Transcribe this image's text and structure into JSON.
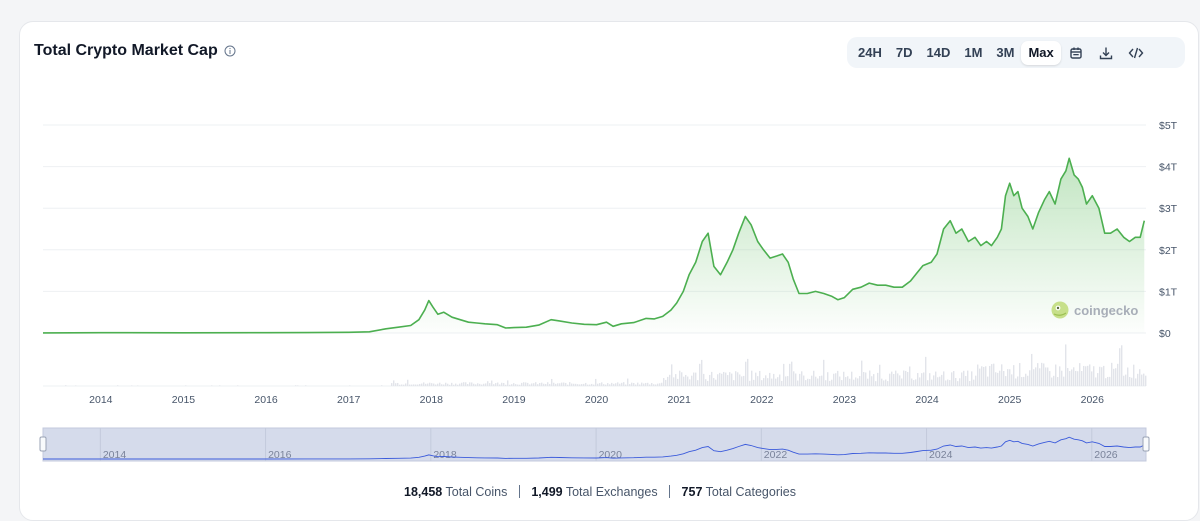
{
  "header": {
    "title": "Total Crypto Market Cap",
    "ranges": [
      "24H",
      "7D",
      "14D",
      "1M",
      "3M",
      "Max"
    ],
    "active_range": "Max",
    "icons": [
      "calendar-icon",
      "download-icon",
      "embed-code-icon"
    ]
  },
  "watermark": "coingecko",
  "colors": {
    "line": "#4caf50",
    "area_top": "#8fd08f",
    "volume": "#e2e4ea",
    "navigator_fill": "#d5dbeb",
    "navigator_line": "#3b5bdb"
  },
  "footer": {
    "coins_value": "18,458",
    "coins_label": "Total Coins",
    "exchanges_value": "1,499",
    "exchanges_label": "Total Exchanges",
    "categories_value": "757",
    "categories_label": "Total Categories"
  },
  "chart_data": {
    "type": "area",
    "title": "Total Crypto Market Cap",
    "xlabel": "",
    "ylabel": "",
    "x_unit": "year",
    "y_unit": "trillion USD",
    "xlim": [
      2013.3,
      2026.65
    ],
    "ylim": [
      0,
      5
    ],
    "y_ticks": [
      0,
      1,
      2,
      3,
      4,
      5
    ],
    "y_tick_labels": [
      "$0",
      "$1T",
      "$2T",
      "$3T",
      "$4T",
      "$5T"
    ],
    "x_ticks": [
      2014,
      2015,
      2016,
      2017,
      2018,
      2019,
      2020,
      2021,
      2022,
      2023,
      2024,
      2025,
      2026
    ],
    "x_tick_labels": [
      "2014",
      "2015",
      "2016",
      "2017",
      "2018",
      "2019",
      "2020",
      "2021",
      "2022",
      "2023",
      "2024",
      "2025",
      "2026"
    ],
    "navigator_tick_labels": [
      "2014",
      "2016",
      "2018",
      "2020",
      "2022",
      "2024",
      "2026"
    ],
    "grid": true,
    "series": [
      {
        "x": [
          2013.3,
          2014.0,
          2015.0,
          2016.0,
          2016.5,
          2017.0,
          2017.25,
          2017.45,
          2017.6,
          2017.75,
          2017.85,
          2017.92,
          2017.97,
          2018.02,
          2018.08,
          2018.15,
          2018.25,
          2018.35,
          2018.45,
          2018.55,
          2018.65,
          2018.8,
          2018.9,
          2019.0,
          2019.15,
          2019.3,
          2019.45,
          2019.55,
          2019.7,
          2019.85,
          2020.0,
          2020.12,
          2020.2,
          2020.3,
          2020.45,
          2020.6,
          2020.7,
          2020.8,
          2020.9,
          2020.97,
          2021.05,
          2021.12,
          2021.2,
          2021.28,
          2021.35,
          2021.42,
          2021.5,
          2021.58,
          2021.65,
          2021.72,
          2021.8,
          2021.87,
          2021.95,
          2022.02,
          2022.1,
          2022.18,
          2022.25,
          2022.32,
          2022.38,
          2022.45,
          2022.55,
          2022.65,
          2022.75,
          2022.85,
          2022.92,
          2023.0,
          2023.1,
          2023.2,
          2023.3,
          2023.4,
          2023.5,
          2023.6,
          2023.7,
          2023.8,
          2023.88,
          2023.95,
          2024.05,
          2024.12,
          2024.2,
          2024.28,
          2024.35,
          2024.42,
          2024.5,
          2024.58,
          2024.65,
          2024.72,
          2024.78,
          2024.85,
          2024.9,
          2024.95,
          2025.0,
          2025.05,
          2025.1,
          2025.15,
          2025.22,
          2025.28,
          2025.35,
          2025.42,
          2025.48,
          2025.55,
          2025.62,
          2025.68,
          2025.72,
          2025.78,
          2025.83,
          2025.88,
          2025.93,
          2026.0,
          2026.08,
          2026.15,
          2026.22,
          2026.3,
          2026.38,
          2026.45,
          2026.52,
          2026.58,
          2026.63
        ],
        "y": [
          0.002,
          0.008,
          0.005,
          0.007,
          0.01,
          0.018,
          0.03,
          0.1,
          0.14,
          0.18,
          0.32,
          0.55,
          0.78,
          0.62,
          0.45,
          0.5,
          0.38,
          0.32,
          0.26,
          0.24,
          0.22,
          0.2,
          0.12,
          0.13,
          0.14,
          0.19,
          0.32,
          0.29,
          0.24,
          0.21,
          0.2,
          0.26,
          0.16,
          0.22,
          0.25,
          0.35,
          0.34,
          0.4,
          0.55,
          0.72,
          1.0,
          1.4,
          1.7,
          2.2,
          2.4,
          1.6,
          1.4,
          1.7,
          2.0,
          2.4,
          2.8,
          2.6,
          2.2,
          2.0,
          1.8,
          1.85,
          1.9,
          1.7,
          1.3,
          0.95,
          0.95,
          1.0,
          0.95,
          0.88,
          0.8,
          0.85,
          1.05,
          1.1,
          1.2,
          1.15,
          1.15,
          1.1,
          1.1,
          1.25,
          1.45,
          1.62,
          1.7,
          1.9,
          2.5,
          2.7,
          2.4,
          2.5,
          2.2,
          2.3,
          2.1,
          2.2,
          2.1,
          2.3,
          2.5,
          3.3,
          3.6,
          3.3,
          3.4,
          3.0,
          2.8,
          2.5,
          2.9,
          3.2,
          3.4,
          3.1,
          3.7,
          3.9,
          4.2,
          3.8,
          3.7,
          3.5,
          3.1,
          3.3,
          3.0,
          2.4,
          2.4,
          2.5,
          2.3,
          2.2,
          2.3,
          2.3,
          2.7
        ]
      }
    ]
  }
}
